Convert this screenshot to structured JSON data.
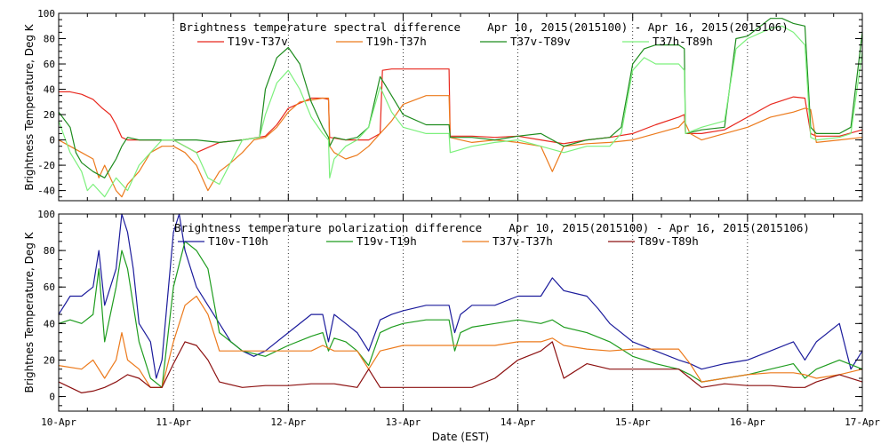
{
  "chart_data": [
    {
      "type": "line",
      "title": "Brightness temperature spectral difference    Apr 10, 2015(2015100) - Apr 16, 2015(2015106)",
      "ylabel": "Brightness Temperature, Deg K",
      "xlabel": "",
      "xlim": [
        0,
        7
      ],
      "ylim": [
        -48,
        100
      ],
      "yticks": [
        -40,
        -20,
        0,
        20,
        40,
        60,
        80,
        100
      ],
      "xticks": [],
      "grid": "vertical dotted at day boundaries",
      "legend_position": "top",
      "series": [
        {
          "name": "T19v-T37v",
          "color": "#e8281e",
          "x": [
            0,
            0.1,
            0.2,
            0.3,
            0.38,
            0.45,
            0.5,
            0.55,
            0.6,
            0.7,
            0.8,
            1.0,
            1.2,
            1.4,
            1.6,
            1.8,
            1.9,
            2.0,
            2.2,
            2.3,
            2.35,
            2.36,
            2.5,
            2.7,
            2.8,
            2.82,
            2.9,
            3.0,
            3.2,
            3.4,
            3.41,
            3.6,
            3.8,
            4.0,
            4.2,
            4.4,
            4.6,
            4.8,
            5.0,
            5.2,
            5.4,
            5.45,
            5.46,
            5.6,
            5.8,
            6.0,
            6.2,
            6.4,
            6.5,
            6.55,
            6.6,
            6.8,
            7.0
          ],
          "y": [
            38,
            38,
            36,
            32,
            25,
            20,
            12,
            2,
            0,
            0,
            0,
            0,
            -10,
            -2,
            0,
            3,
            12,
            25,
            33,
            33,
            32,
            2,
            0,
            0,
            5,
            55,
            56,
            56,
            56,
            56,
            3,
            3,
            2,
            3,
            0,
            -3,
            0,
            2,
            5,
            12,
            18,
            20,
            5,
            5,
            8,
            18,
            28,
            34,
            33,
            5,
            3,
            3,
            8
          ]
        },
        {
          "name": "T19h-T37h",
          "color": "#ec7a1c",
          "x": [
            0,
            0.1,
            0.2,
            0.3,
            0.35,
            0.4,
            0.5,
            0.55,
            0.6,
            0.7,
            0.8,
            0.9,
            1.0,
            1.1,
            1.2,
            1.3,
            1.4,
            1.5,
            1.6,
            1.7,
            1.8,
            1.9,
            2.0,
            2.1,
            2.3,
            2.35,
            2.36,
            2.4,
            2.5,
            2.6,
            2.7,
            2.8,
            2.9,
            3.0,
            3.2,
            3.4,
            3.41,
            3.5,
            3.6,
            3.8,
            4.0,
            4.2,
            4.3,
            4.4,
            4.6,
            4.8,
            5.0,
            5.2,
            5.4,
            5.45,
            5.5,
            5.6,
            5.8,
            6.0,
            6.2,
            6.4,
            6.5,
            6.55,
            6.6,
            6.8,
            7.0
          ],
          "y": [
            0,
            -5,
            -10,
            -15,
            -30,
            -20,
            -40,
            -45,
            -35,
            -25,
            -10,
            -5,
            -5,
            -10,
            -20,
            -40,
            -25,
            -18,
            -10,
            0,
            2,
            10,
            22,
            30,
            33,
            33,
            -5,
            -10,
            -15,
            -12,
            -5,
            5,
            15,
            28,
            35,
            35,
            2,
            0,
            -2,
            0,
            -2,
            -5,
            -25,
            -5,
            -3,
            -2,
            0,
            5,
            10,
            15,
            5,
            0,
            5,
            10,
            18,
            22,
            25,
            24,
            -2,
            0,
            2
          ]
        },
        {
          "name": "T37v-T89v",
          "color": "#1e8c1e",
          "x": [
            0,
            0.1,
            0.15,
            0.2,
            0.3,
            0.4,
            0.5,
            0.55,
            0.6,
            0.7,
            0.8,
            0.9,
            1.0,
            1.2,
            1.4,
            1.6,
            1.75,
            1.8,
            1.9,
            2.0,
            2.1,
            2.2,
            2.3,
            2.35,
            2.36,
            2.4,
            2.5,
            2.6,
            2.7,
            2.8,
            2.9,
            3.0,
            3.2,
            3.4,
            3.41,
            3.6,
            3.8,
            4.0,
            4.2,
            4.4,
            4.6,
            4.8,
            4.9,
            5.0,
            5.1,
            5.2,
            5.3,
            5.4,
            5.45,
            5.46,
            5.6,
            5.8,
            5.9,
            6.0,
            6.2,
            6.3,
            6.4,
            6.5,
            6.55,
            6.6,
            6.8,
            6.9,
            7.0
          ],
          "y": [
            22,
            10,
            -10,
            -18,
            -25,
            -30,
            -15,
            -5,
            2,
            0,
            0,
            0,
            0,
            0,
            -2,
            0,
            2,
            40,
            65,
            73,
            60,
            30,
            10,
            2,
            -5,
            2,
            0,
            2,
            10,
            50,
            35,
            20,
            12,
            12,
            2,
            2,
            0,
            3,
            5,
            -5,
            0,
            2,
            10,
            60,
            72,
            75,
            75,
            75,
            72,
            5,
            8,
            10,
            80,
            82,
            96,
            96,
            92,
            90,
            10,
            5,
            5,
            10,
            85
          ]
        },
        {
          "name": "T37h-T89h",
          "color": "#7cf07c",
          "x": [
            0,
            0.1,
            0.2,
            0.25,
            0.3,
            0.4,
            0.5,
            0.6,
            0.7,
            0.8,
            0.9,
            1.0,
            1.1,
            1.2,
            1.3,
            1.4,
            1.6,
            1.75,
            1.8,
            1.9,
            2.0,
            2.1,
            2.2,
            2.3,
            2.35,
            2.36,
            2.4,
            2.5,
            2.6,
            2.7,
            2.8,
            2.9,
            3.0,
            3.2,
            3.4,
            3.41,
            3.6,
            3.8,
            4.0,
            4.2,
            4.4,
            4.6,
            4.8,
            4.9,
            5.0,
            5.1,
            5.2,
            5.3,
            5.4,
            5.45,
            5.46,
            5.6,
            5.8,
            5.9,
            6.0,
            6.2,
            6.3,
            6.4,
            6.5,
            6.55,
            6.6,
            6.8,
            6.9,
            7.0
          ],
          "y": [
            15,
            -10,
            -25,
            -40,
            -35,
            -45,
            -30,
            -40,
            -20,
            -10,
            0,
            0,
            -5,
            -10,
            -30,
            -35,
            0,
            2,
            20,
            45,
            55,
            40,
            18,
            5,
            0,
            -30,
            -15,
            -5,
            0,
            10,
            42,
            22,
            10,
            5,
            5,
            -10,
            -5,
            -2,
            0,
            -5,
            -10,
            -5,
            -5,
            5,
            55,
            65,
            60,
            60,
            60,
            55,
            5,
            10,
            15,
            72,
            80,
            88,
            90,
            85,
            75,
            2,
            0,
            2,
            5,
            70
          ]
        }
      ]
    },
    {
      "type": "line",
      "title": "Brightness temperature polarization difference    Apr 10, 2015(2015100) - Apr 16, 2015(2015106)",
      "ylabel": "Brightnes Temperature, Deg K",
      "xlabel": "Date (EST)",
      "xlim": [
        0,
        7
      ],
      "ylim": [
        -8,
        100
      ],
      "yticks": [
        0,
        20,
        40,
        60,
        80,
        100
      ],
      "xticks": [
        "10-Apr",
        "11-Apr",
        "12-Apr",
        "13-Apr",
        "14-Apr",
        "15-Apr",
        "16-Apr",
        "17-Apr"
      ],
      "grid": "vertical dotted at day boundaries",
      "legend_position": "top",
      "series": [
        {
          "name": "T10v-T10h",
          "color": "#1c1c9c",
          "x": [
            0,
            0.1,
            0.2,
            0.3,
            0.35,
            0.4,
            0.5,
            0.55,
            0.6,
            0.65,
            0.7,
            0.8,
            0.85,
            0.9,
            1.0,
            1.05,
            1.1,
            1.2,
            1.3,
            1.4,
            1.5,
            1.6,
            1.7,
            1.8,
            2.0,
            2.2,
            2.3,
            2.35,
            2.4,
            2.5,
            2.6,
            2.7,
            2.8,
            2.9,
            3.0,
            3.2,
            3.4,
            3.45,
            3.5,
            3.6,
            3.8,
            4.0,
            4.2,
            4.3,
            4.4,
            4.6,
            4.7,
            4.8,
            5.0,
            5.2,
            5.4,
            5.5,
            5.6,
            5.8,
            6.0,
            6.2,
            6.4,
            6.5,
            6.6,
            6.8,
            6.9,
            7.0
          ],
          "y": [
            45,
            55,
            55,
            60,
            80,
            50,
            70,
            100,
            90,
            70,
            40,
            30,
            10,
            20,
            90,
            100,
            80,
            60,
            50,
            40,
            30,
            25,
            22,
            25,
            35,
            45,
            45,
            30,
            45,
            40,
            35,
            25,
            42,
            45,
            47,
            50,
            50,
            35,
            45,
            50,
            50,
            55,
            55,
            65,
            58,
            55,
            48,
            40,
            30,
            25,
            20,
            18,
            15,
            18,
            20,
            25,
            30,
            20,
            30,
            40,
            15,
            25
          ]
        },
        {
          "name": "T19v-T19h",
          "color": "#1e9c1e",
          "x": [
            0,
            0.1,
            0.2,
            0.3,
            0.35,
            0.4,
            0.5,
            0.55,
            0.6,
            0.7,
            0.8,
            0.9,
            1.0,
            1.1,
            1.2,
            1.3,
            1.4,
            1.5,
            1.6,
            1.8,
            2.0,
            2.2,
            2.3,
            2.35,
            2.4,
            2.5,
            2.6,
            2.7,
            2.8,
            2.9,
            3.0,
            3.2,
            3.4,
            3.45,
            3.5,
            3.6,
            3.8,
            4.0,
            4.2,
            4.3,
            4.4,
            4.6,
            4.8,
            5.0,
            5.2,
            5.4,
            5.5,
            5.6,
            5.8,
            6.0,
            6.2,
            6.4,
            6.5,
            6.6,
            6.8,
            7.0
          ],
          "y": [
            40,
            42,
            40,
            45,
            70,
            30,
            60,
            80,
            70,
            30,
            10,
            5,
            60,
            85,
            80,
            70,
            35,
            30,
            25,
            22,
            28,
            33,
            35,
            25,
            32,
            30,
            25,
            17,
            35,
            38,
            40,
            42,
            42,
            25,
            35,
            38,
            40,
            42,
            40,
            42,
            38,
            35,
            30,
            22,
            18,
            15,
            12,
            8,
            10,
            12,
            15,
            18,
            10,
            15,
            20,
            15
          ]
        },
        {
          "name": "T37v-T37h",
          "color": "#ec7a1c",
          "x": [
            0,
            0.2,
            0.3,
            0.4,
            0.5,
            0.55,
            0.6,
            0.7,
            0.8,
            0.9,
            1.0,
            1.1,
            1.2,
            1.3,
            1.4,
            1.6,
            1.8,
            2.0,
            2.2,
            2.3,
            2.4,
            2.6,
            2.7,
            2.8,
            3.0,
            3.2,
            3.4,
            3.6,
            3.8,
            4.0,
            4.2,
            4.3,
            4.4,
            4.6,
            4.8,
            5.0,
            5.2,
            5.4,
            5.5,
            5.6,
            5.8,
            6.0,
            6.2,
            6.4,
            6.5,
            6.6,
            6.8,
            7.0
          ],
          "y": [
            17,
            15,
            20,
            10,
            20,
            35,
            20,
            15,
            5,
            5,
            30,
            50,
            55,
            45,
            25,
            25,
            25,
            25,
            25,
            28,
            25,
            25,
            15,
            25,
            28,
            28,
            28,
            28,
            28,
            30,
            30,
            32,
            28,
            26,
            25,
            26,
            26,
            26,
            18,
            8,
            10,
            12,
            13,
            13,
            12,
            10,
            12,
            15
          ]
        },
        {
          "name": "T89v-T89h",
          "color": "#8c1010",
          "x": [
            0,
            0.2,
            0.3,
            0.4,
            0.5,
            0.6,
            0.7,
            0.8,
            0.9,
            1.0,
            1.1,
            1.2,
            1.3,
            1.4,
            1.6,
            1.8,
            2.0,
            2.2,
            2.4,
            2.6,
            2.7,
            2.8,
            3.0,
            3.2,
            3.4,
            3.6,
            3.8,
            4.0,
            4.2,
            4.3,
            4.4,
            4.6,
            4.8,
            5.0,
            5.2,
            5.4,
            5.5,
            5.6,
            5.8,
            6.0,
            6.2,
            6.4,
            6.5,
            6.6,
            6.8,
            7.0
          ],
          "y": [
            8,
            2,
            3,
            5,
            8,
            12,
            10,
            5,
            5,
            18,
            30,
            28,
            20,
            8,
            5,
            6,
            6,
            7,
            7,
            5,
            15,
            5,
            5,
            5,
            5,
            5,
            10,
            20,
            25,
            30,
            10,
            18,
            15,
            15,
            15,
            15,
            10,
            5,
            7,
            6,
            6,
            5,
            5,
            8,
            12,
            8
          ]
        }
      ]
    }
  ]
}
